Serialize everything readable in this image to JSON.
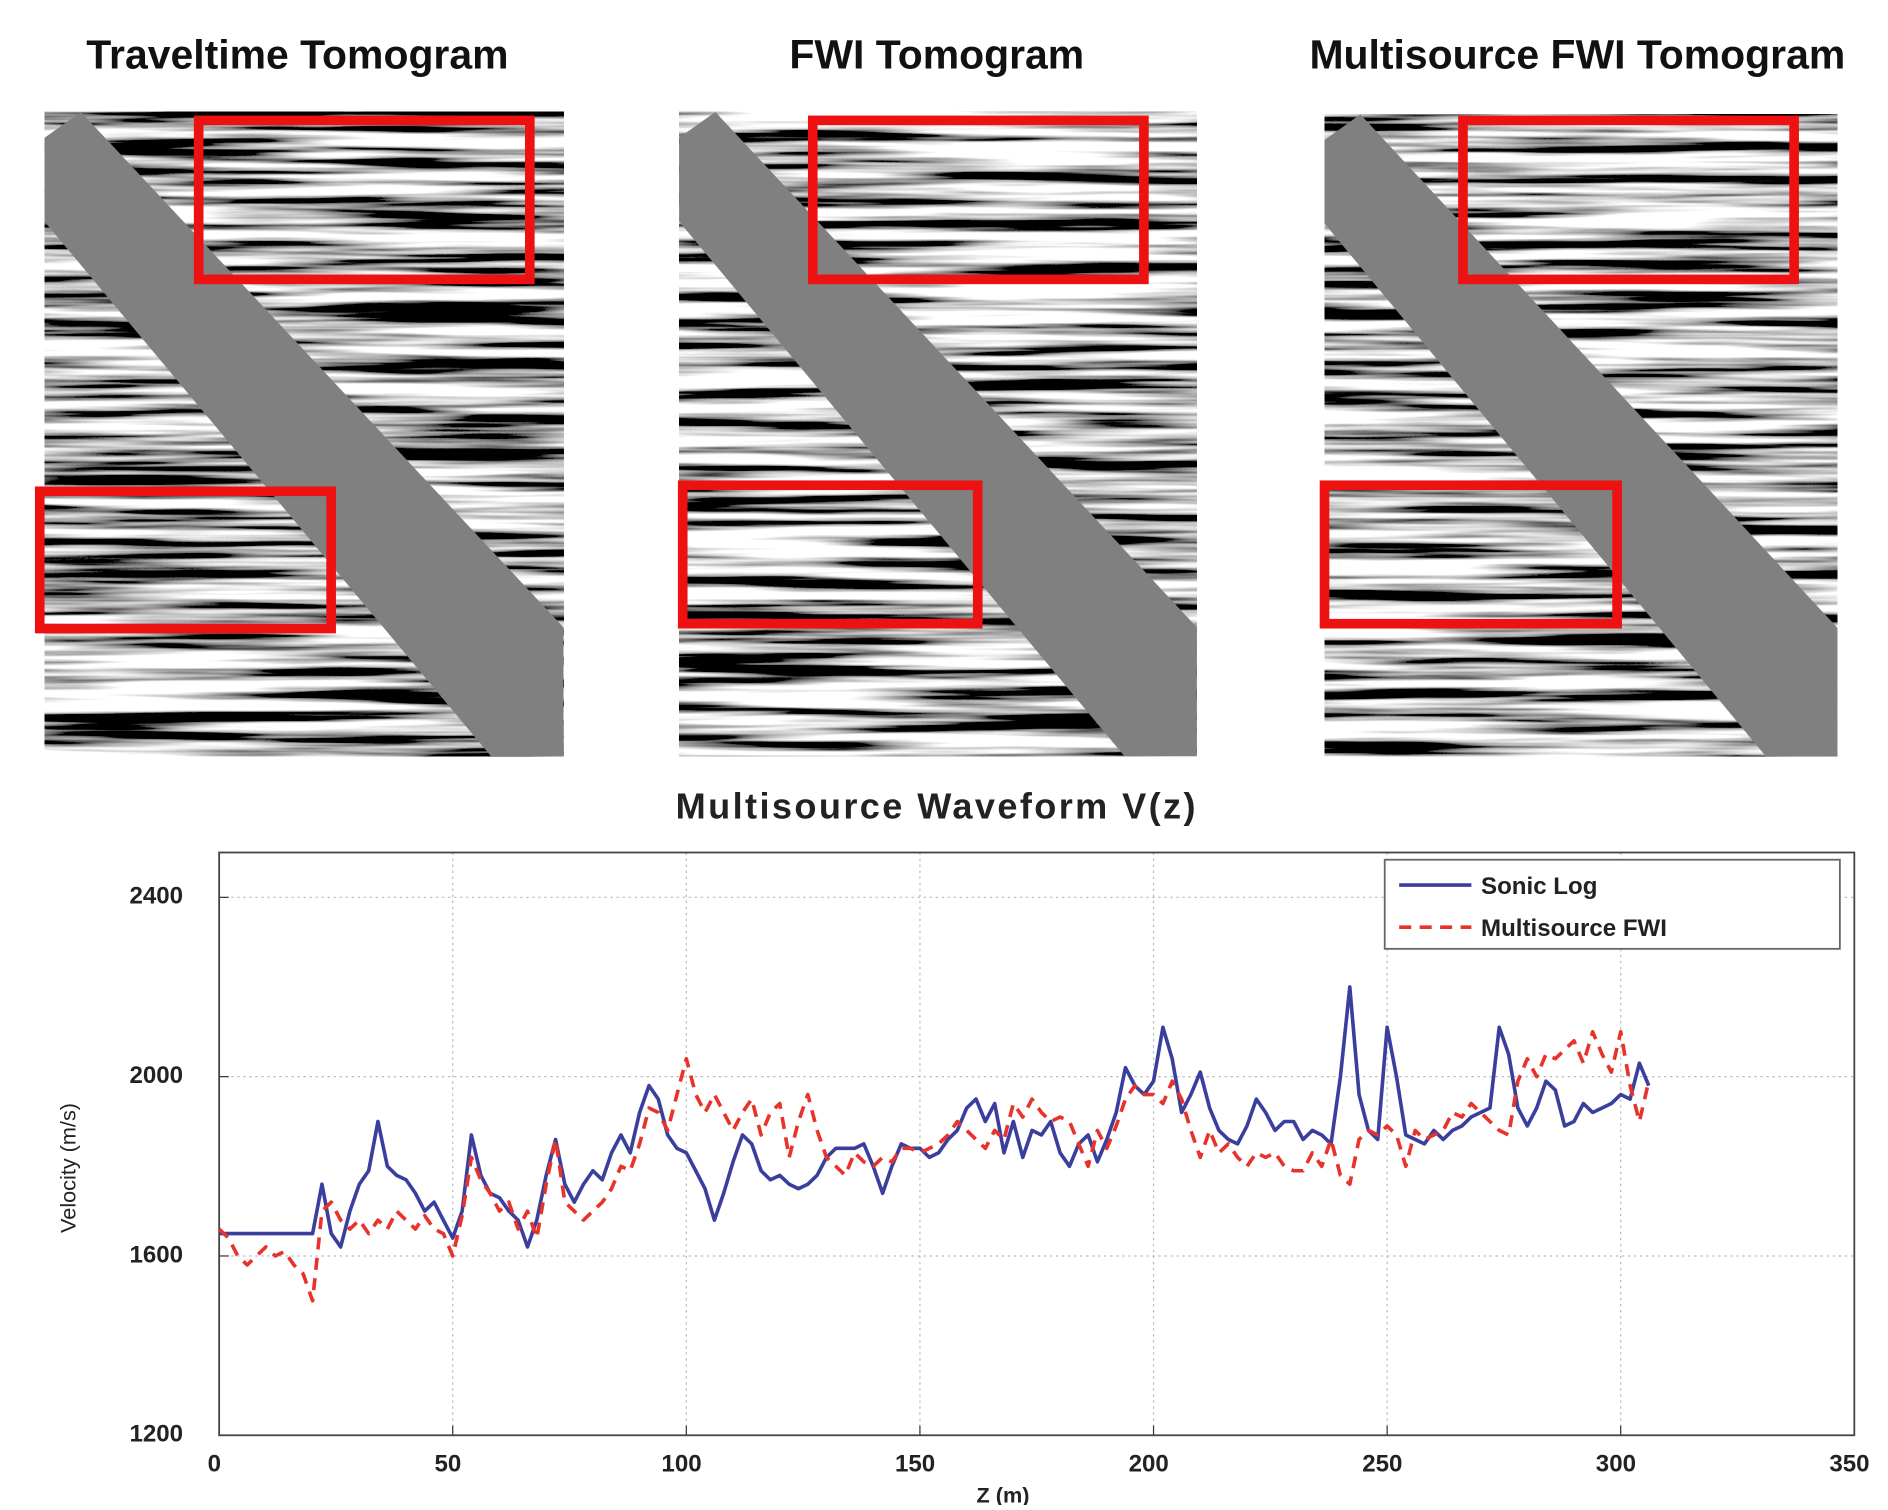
{
  "panels": [
    {
      "title": "Traveltime Tomogram"
    },
    {
      "title": "FWI Tomogram"
    },
    {
      "title": "Multisource FWI Tomogram"
    }
  ],
  "chart_data": {
    "type": "line",
    "title": "Multisource Waveform V(z)",
    "x_label": "Z (m)",
    "y_label": "Velocity (m/s)",
    "x": [
      0,
      2,
      4,
      6,
      8,
      10,
      12,
      14,
      16,
      18,
      20,
      22,
      24,
      26,
      28,
      30,
      32,
      34,
      36,
      38,
      40,
      42,
      44,
      46,
      48,
      50,
      52,
      54,
      56,
      58,
      60,
      62,
      64,
      66,
      68,
      70,
      72,
      74,
      76,
      78,
      80,
      82,
      84,
      86,
      88,
      90,
      92,
      94,
      96,
      98,
      100,
      102,
      104,
      106,
      108,
      110,
      112,
      114,
      116,
      118,
      120,
      122,
      124,
      126,
      128,
      130,
      132,
      134,
      136,
      138,
      140,
      142,
      144,
      146,
      148,
      150,
      152,
      154,
      156,
      158,
      160,
      162,
      164,
      166,
      168,
      170,
      172,
      174,
      176,
      178,
      180,
      182,
      184,
      186,
      188,
      190,
      192,
      194,
      196,
      198,
      200,
      202,
      204,
      206,
      208,
      210,
      212,
      214,
      216,
      218,
      220,
      222,
      224,
      226,
      228,
      230,
      232,
      234,
      236,
      238,
      240,
      242,
      244,
      246,
      248,
      250,
      252,
      254,
      256,
      258,
      260,
      262,
      264,
      266,
      268,
      270,
      272,
      274,
      276,
      278,
      280,
      282,
      284,
      286,
      288,
      290,
      292,
      294,
      296,
      298,
      300,
      302,
      304,
      306
    ],
    "series": [
      {
        "name": "Sonic Log",
        "color": "#3a3f9e",
        "dash": false,
        "values": [
          1650,
          1650,
          1650,
          1650,
          1650,
          1650,
          1650,
          1650,
          1650,
          1650,
          1650,
          1760,
          1650,
          1620,
          1700,
          1760,
          1790,
          1900,
          1800,
          1780,
          1770,
          1740,
          1700,
          1720,
          1680,
          1640,
          1700,
          1870,
          1780,
          1740,
          1730,
          1700,
          1680,
          1620,
          1680,
          1780,
          1860,
          1760,
          1720,
          1760,
          1790,
          1770,
          1830,
          1870,
          1830,
          1920,
          1980,
          1950,
          1870,
          1840,
          1830,
          1790,
          1750,
          1680,
          1740,
          1810,
          1870,
          1850,
          1790,
          1770,
          1780,
          1760,
          1750,
          1760,
          1780,
          1820,
          1840,
          1840,
          1840,
          1850,
          1800,
          1740,
          1800,
          1850,
          1840,
          1840,
          1820,
          1830,
          1860,
          1880,
          1930,
          1950,
          1900,
          1940,
          1830,
          1900,
          1820,
          1880,
          1870,
          1900,
          1830,
          1800,
          1850,
          1870,
          1810,
          1860,
          1920,
          2020,
          1980,
          1960,
          1990,
          2110,
          2040,
          1920,
          1960,
          2010,
          1930,
          1880,
          1860,
          1850,
          1890,
          1950,
          1920,
          1880,
          1900,
          1900,
          1860,
          1880,
          1870,
          1850,
          2000,
          2200,
          1960,
          1880,
          1860,
          2110,
          2000,
          1870,
          1860,
          1850,
          1880,
          1860,
          1880,
          1890,
          1910,
          1920,
          1930,
          2110,
          2050,
          1930,
          1890,
          1930,
          1990,
          1970,
          1890,
          1900,
          1940,
          1920,
          1930,
          1940,
          1960,
          1950,
          2030,
          1980
        ]
      },
      {
        "name": "Multisource FWI",
        "color": "#e8332a",
        "dash": true,
        "values": [
          1660,
          1640,
          1600,
          1580,
          1600,
          1620,
          1600,
          1610,
          1580,
          1560,
          1500,
          1700,
          1720,
          1680,
          1660,
          1680,
          1650,
          1680,
          1660,
          1700,
          1680,
          1660,
          1690,
          1660,
          1650,
          1600,
          1690,
          1820,
          1770,
          1740,
          1700,
          1720,
          1660,
          1700,
          1640,
          1760,
          1860,
          1720,
          1700,
          1680,
          1700,
          1720,
          1750,
          1800,
          1790,
          1850,
          1930,
          1920,
          1880,
          1960,
          2040,
          1960,
          1920,
          1960,
          1920,
          1880,
          1920,
          1950,
          1870,
          1920,
          1940,
          1820,
          1900,
          1960,
          1880,
          1820,
          1800,
          1780,
          1830,
          1810,
          1800,
          1820,
          1810,
          1840,
          1840,
          1830,
          1840,
          1850,
          1870,
          1900,
          1880,
          1860,
          1840,
          1880,
          1860,
          1940,
          1910,
          1950,
          1920,
          1900,
          1910,
          1900,
          1850,
          1800,
          1880,
          1840,
          1890,
          1950,
          1980,
          1960,
          1960,
          1940,
          1990,
          1950,
          1880,
          1820,
          1880,
          1830,
          1850,
          1820,
          1800,
          1830,
          1820,
          1830,
          1800,
          1790,
          1790,
          1830,
          1800,
          1860,
          1780,
          1760,
          1860,
          1880,
          1870,
          1890,
          1870,
          1800,
          1880,
          1860,
          1870,
          1880,
          1920,
          1910,
          1940,
          1920,
          1900,
          1880,
          1870,
          1990,
          2040,
          2000,
          2050,
          2040,
          2060,
          2080,
          2030,
          2100,
          2050,
          2010,
          2100,
          1980,
          1900,
          1990
        ]
      }
    ],
    "xlim": [
      0,
      350
    ],
    "xticks": [
      0,
      50,
      100,
      150,
      200,
      250,
      300,
      350
    ],
    "ylim": [
      1200,
      2500
    ],
    "yticks": [
      1200,
      1600,
      2000,
      2400
    ],
    "grid": true,
    "legend": "upper right"
  }
}
